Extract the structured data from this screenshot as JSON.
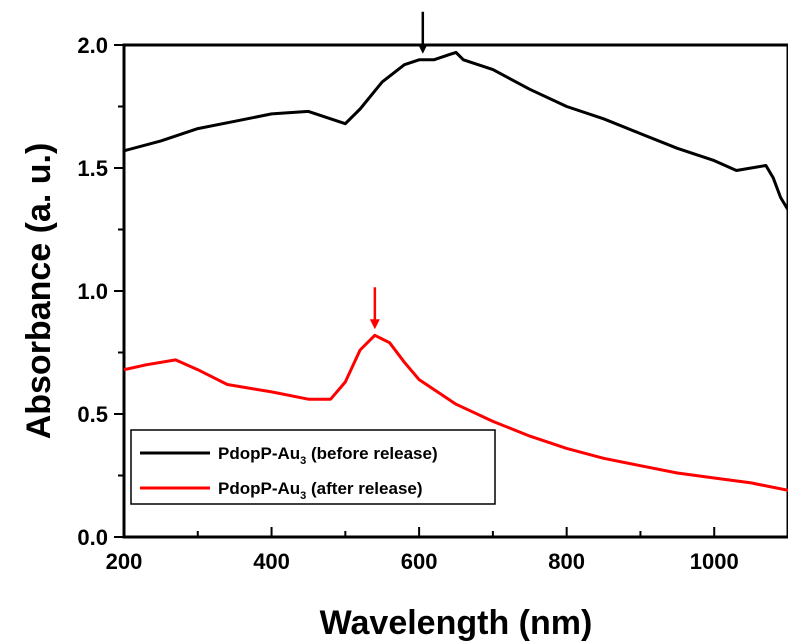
{
  "chart_data": {
    "type": "line",
    "xlabel": "Wavelength (nm)",
    "ylabel": "Absorbance (a. u.)",
    "xlim": [
      200,
      1100
    ],
    "ylim": [
      0.0,
      2.0
    ],
    "xticks": [
      200,
      400,
      600,
      800,
      1000
    ],
    "xtick_labels": [
      "200",
      "400",
      "600",
      "800",
      "1000"
    ],
    "yticks": [
      0.0,
      0.5,
      1.0,
      1.5,
      2.0
    ],
    "ytick_labels": [
      "0.0",
      "0.5",
      "1.0",
      "1.5",
      "2.0"
    ],
    "grid": false,
    "legend_position": "bottom-left",
    "series": [
      {
        "name": "PdopP-Au3 (before release)",
        "legend_main": "PdopP-Au",
        "legend_sub": "3",
        "legend_suffix": " (before release)",
        "color": "#000000",
        "x": [
          200,
          250,
          300,
          350,
          400,
          450,
          480,
          500,
          520,
          550,
          580,
          600,
          620,
          640,
          650,
          660,
          700,
          750,
          800,
          850,
          900,
          950,
          1000,
          1030,
          1050,
          1070,
          1080,
          1090,
          1100
        ],
        "y": [
          1.57,
          1.61,
          1.66,
          1.69,
          1.72,
          1.73,
          1.7,
          1.68,
          1.74,
          1.85,
          1.92,
          1.94,
          1.94,
          1.96,
          1.97,
          1.94,
          1.9,
          1.82,
          1.75,
          1.7,
          1.64,
          1.58,
          1.53,
          1.49,
          1.5,
          1.51,
          1.46,
          1.38,
          1.33
        ]
      },
      {
        "name": "PdopP-Au3 (after release)",
        "legend_main": "PdopP-Au",
        "legend_sub": "3",
        "legend_suffix": " (after release)",
        "color": "#ff0000",
        "x": [
          200,
          230,
          270,
          300,
          340,
          400,
          450,
          480,
          500,
          520,
          540,
          560,
          580,
          600,
          650,
          700,
          750,
          800,
          850,
          900,
          950,
          1000,
          1050,
          1100
        ],
        "y": [
          0.68,
          0.7,
          0.72,
          0.68,
          0.62,
          0.59,
          0.56,
          0.56,
          0.63,
          0.76,
          0.82,
          0.79,
          0.71,
          0.64,
          0.54,
          0.47,
          0.41,
          0.36,
          0.32,
          0.29,
          0.26,
          0.24,
          0.22,
          0.19
        ]
      }
    ],
    "annotations": [
      {
        "type": "arrow",
        "x": 605,
        "y": 1.94,
        "color": "#000000"
      },
      {
        "type": "arrow",
        "x": 540,
        "y": 0.82,
        "color": "#ff0000"
      }
    ]
  }
}
